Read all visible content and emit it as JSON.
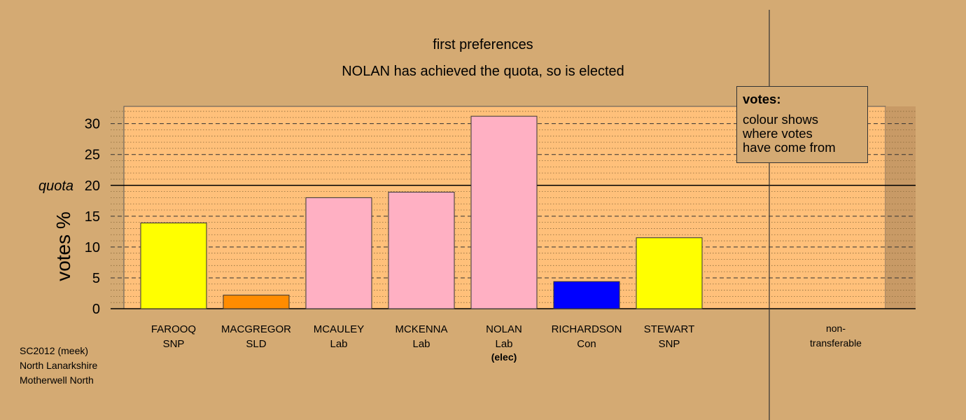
{
  "title_line1": "first preferences",
  "title_line2": "NOLAN has achieved the quota, so is elected",
  "legend": {
    "title": "votes:",
    "lines": [
      "colour shows",
      "where votes",
      "have come from"
    ]
  },
  "footer": [
    "SC2012 (meek)",
    "North Lanarkshire",
    "Motherwell North"
  ],
  "colors": {
    "background": "#d4aa73",
    "plot_area": "#ffc07a",
    "SNP": "#ffff00",
    "SLD": "#ff8c00",
    "Lab": "#ffb0c3",
    "Con": "#0000ff"
  },
  "chart_data": {
    "type": "bar",
    "ylabel": "votes %",
    "ylim": [
      0,
      32.8
    ],
    "yticks": [
      0,
      5,
      10,
      15,
      20,
      25,
      30
    ],
    "quota": {
      "value": 20,
      "label": "quota"
    },
    "categories": [
      {
        "name": "FAROOQ",
        "party": "SNP",
        "value": 13.9,
        "color": "#ffff00",
        "note": ""
      },
      {
        "name": "MACGREGOR",
        "party": "SLD",
        "value": 2.2,
        "color": "#ff8c00",
        "note": ""
      },
      {
        "name": "MCAULEY",
        "party": "Lab",
        "value": 18.0,
        "color": "#ffb0c3",
        "note": ""
      },
      {
        "name": "MCKENNA",
        "party": "Lab",
        "value": 18.9,
        "color": "#ffb0c3",
        "note": ""
      },
      {
        "name": "NOLAN",
        "party": "Lab",
        "value": 31.2,
        "color": "#ffb0c3",
        "note": "(elec)"
      },
      {
        "name": "RICHARDSON",
        "party": "Con",
        "value": 4.4,
        "color": "#0000ff",
        "note": ""
      },
      {
        "name": "STEWART",
        "party": "SNP",
        "value": 11.5,
        "color": "#ffff00",
        "note": ""
      }
    ],
    "extra_category": {
      "line1": "non-",
      "line2": "transferable",
      "value": 0
    },
    "grid": true
  }
}
